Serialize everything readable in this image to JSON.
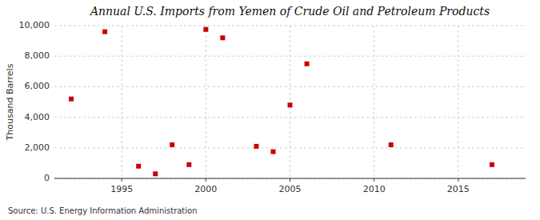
{
  "chart_data": {
    "type": "scatter",
    "title": "Annual U.S. Imports from Yemen of Crude Oil and Petroleum Products",
    "ylabel": "Thousand Barrels",
    "annotations": [
      "Source: U.S. Energy Information Administration"
    ],
    "x": [
      1992,
      1994,
      1996,
      1997,
      1998,
      1999,
      2000,
      2001,
      2003,
      2004,
      2005,
      2006,
      2011,
      2017
    ],
    "values": [
      5200,
      9600,
      800,
      300,
      2200,
      900,
      9750,
      9200,
      2100,
      1750,
      4800,
      7500,
      2200,
      900
    ],
    "color": "#cc0000",
    "marker": "square",
    "xlim": [
      1991,
      2019
    ],
    "xticks": [
      1995,
      2000,
      2005,
      2010,
      2015
    ],
    "ylim": [
      0,
      10000
    ],
    "yticks": [
      0,
      {
        "value": 2000,
        "label": "2,000"
      },
      {
        "value": 4000,
        "label": "4,000"
      },
      {
        "value": 6000,
        "label": "6,000"
      },
      {
        "value": 8000,
        "label": "8,000"
      },
      {
        "value": 10000,
        "label": "10,000"
      }
    ],
    "grid": true
  }
}
